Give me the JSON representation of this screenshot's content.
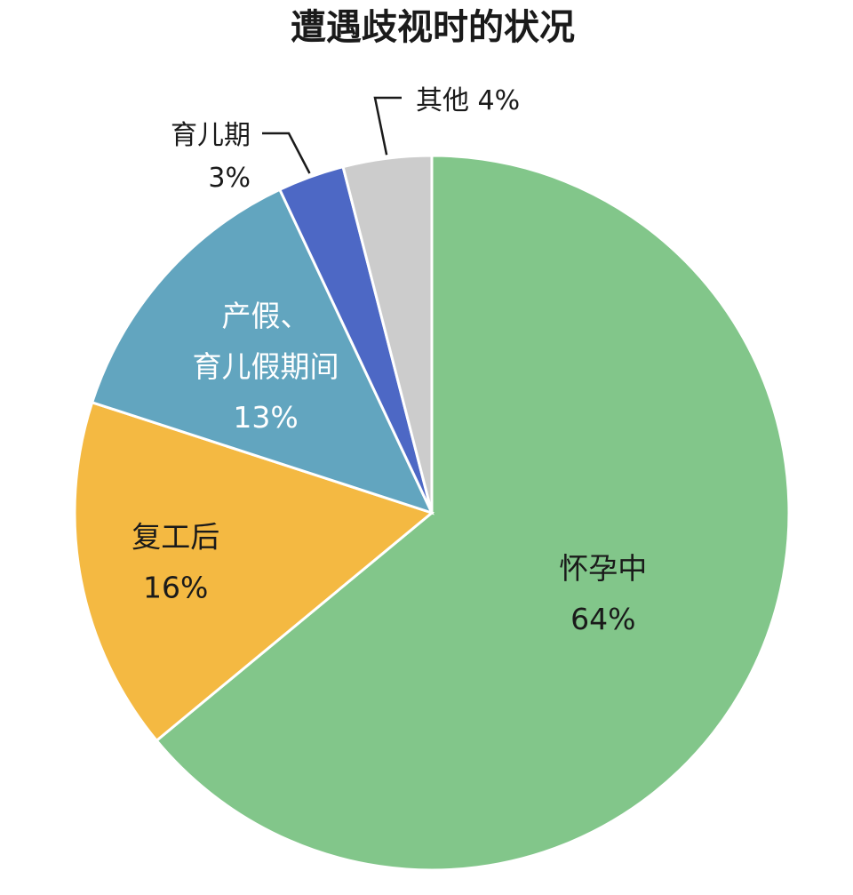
{
  "chart_data": {
    "type": "pie",
    "title": "遭遇歧视时的状况",
    "slices": [
      {
        "label_lines": [
          "怀孕中"
        ],
        "value_label": "64%",
        "value": 64,
        "color": "#82c68a"
      },
      {
        "label_lines": [
          "复工后"
        ],
        "value_label": "16%",
        "value": 16,
        "color": "#f4b942"
      },
      {
        "label_lines": [
          "产假、",
          "育儿假期间"
        ],
        "value_label": "13%",
        "value": 13,
        "color": "#62a5bf"
      },
      {
        "label_lines": [
          "育儿期"
        ],
        "value_label": "3%",
        "value": 3,
        "color": "#4d68c5"
      },
      {
        "label_lines": [
          "其他"
        ],
        "value_label": "4%",
        "value": 4,
        "color": "#cccccc"
      }
    ]
  }
}
